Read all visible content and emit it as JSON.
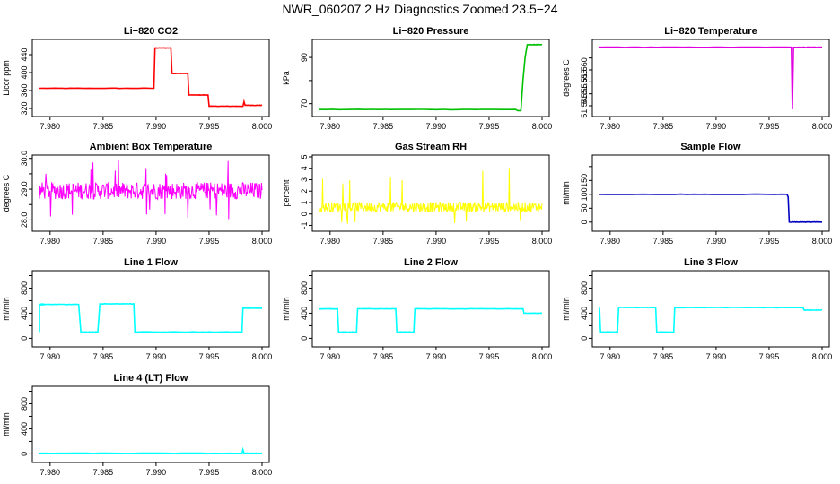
{
  "title": "NWR_060207  2 Hz Diagnostics Zoomed 23.5−24",
  "x_tick_labels": [
    "7.980",
    "7.985",
    "7.990",
    "7.995",
    "8.000"
  ],
  "chart_data": [
    {
      "type": "line",
      "title": "Li−820 CO2",
      "ylabel": "Licor ppm",
      "color": "#ff0000",
      "xlim": [
        7.979,
        8.0
      ],
      "ylim": [
        310,
        470
      ],
      "yticks": [
        320,
        360,
        400,
        440
      ],
      "x": [
        7.979,
        7.9898,
        7.9899,
        7.9914,
        7.9915,
        7.993,
        7.9931,
        7.9949,
        7.995,
        7.9982,
        7.9983,
        7.9984,
        8.0
      ],
      "y": [
        365,
        365,
        455,
        455,
        398,
        398,
        350,
        350,
        325,
        325,
        335,
        327,
        327
      ]
    },
    {
      "type": "line",
      "title": "Li−820 Pressure",
      "ylabel": "kPa",
      "color": "#00c000",
      "xlim": [
        7.979,
        8.0
      ],
      "ylim": [
        66,
        97
      ],
      "yticks": [
        70,
        80,
        90
      ],
      "ytick_labels": [
        "70",
        "",
        "90"
      ],
      "x": [
        7.979,
        7.9975,
        7.9977,
        7.998,
        7.9982,
        7.9984,
        7.9986,
        8.0
      ],
      "y": [
        67.5,
        67.5,
        67.0,
        67.0,
        80,
        90,
        95.5,
        95.5
      ]
    },
    {
      "type": "line",
      "title": "Li−820 Temperature",
      "ylabel": "degrees C",
      "color": "#e000e0",
      "xlim": [
        7.979,
        8.0
      ],
      "ylim": [
        51.542,
        51.572
      ],
      "yticks": [
        51.545,
        51.55,
        51.555,
        51.56,
        51.565
      ],
      "ytick_labels": [
        "51.545",
        "51.55",
        "51.555",
        "51.560",
        ""
      ],
      "x": [
        7.979,
        7.9971,
        7.9972,
        7.9973,
        8.0
      ],
      "y": [
        51.5695,
        51.5695,
        51.5435,
        51.5695,
        51.5695
      ]
    },
    {
      "type": "line",
      "title": "Ambient Box Temperature",
      "ylabel": "degrees C",
      "color": "#ff00ff",
      "xlim": [
        7.979,
        8.0
      ],
      "ylim": [
        27.75,
        30.05
      ],
      "yticks": [
        28.0,
        28.5,
        29.0,
        29.5,
        30.0
      ],
      "ytick_labels": [
        "28.0",
        "",
        "29.0",
        "",
        "30.0"
      ],
      "noise": {
        "center": 28.95,
        "spread": 0.28,
        "spike_up": 29.95,
        "spike_down": 27.95
      }
    },
    {
      "type": "line",
      "title": "Gas Stream RH",
      "ylabel": "percent",
      "color": "#ffff00",
      "xlim": [
        7.979,
        8.0
      ],
      "ylim": [
        -1.2,
        5.0
      ],
      "yticks": [
        -1,
        0,
        1,
        2,
        3,
        4,
        5
      ],
      "noise": {
        "center": 0.6,
        "spread": 0.45,
        "spike_up": 4.6,
        "spike_down": -0.9
      }
    },
    {
      "type": "line",
      "title": "Sample Flow",
      "ylabel": "ml/min",
      "color": "#0000c0",
      "xlim": [
        7.979,
        8.0
      ],
      "ylim": [
        -20,
        235
      ],
      "yticks": [
        0,
        50,
        100,
        150,
        200
      ],
      "ytick_labels": [
        "0",
        "50",
        "100",
        "150",
        ""
      ],
      "x": [
        7.979,
        7.9967,
        7.9968,
        7.9969,
        8.0
      ],
      "y": [
        100,
        100,
        90,
        0,
        0
      ]
    },
    {
      "type": "line",
      "title": "Line 1 Flow",
      "ylabel": "ml/min",
      "color": "#00ffff",
      "xlim": [
        7.979,
        8.0
      ],
      "ylim": [
        -80,
        1050
      ],
      "yticks": [
        0,
        200,
        400,
        600,
        800,
        1000
      ],
      "ytick_labels": [
        "0",
        "",
        "400",
        "",
        "800",
        ""
      ],
      "x": [
        7.979,
        7.979,
        7.9795,
        7.9827,
        7.9829,
        7.9845,
        7.9847,
        7.9879,
        7.988,
        7.9981,
        7.9982,
        8.0
      ],
      "y": [
        100,
        540,
        540,
        540,
        100,
        100,
        550,
        550,
        100,
        100,
        480,
        480
      ]
    },
    {
      "type": "line",
      "title": "Line 2 Flow",
      "ylabel": "ml/min",
      "color": "#00ffff",
      "xlim": [
        7.979,
        8.0
      ],
      "ylim": [
        -80,
        1050
      ],
      "yticks": [
        0,
        200,
        400,
        600,
        800,
        1000
      ],
      "ytick_labels": [
        "0",
        "",
        "400",
        "",
        "800",
        ""
      ],
      "x": [
        7.979,
        7.9807,
        7.9808,
        7.9825,
        7.9826,
        7.9862,
        7.9863,
        7.9879,
        7.988,
        7.9982,
        7.9983,
        8.0
      ],
      "y": [
        470,
        470,
        100,
        100,
        470,
        470,
        100,
        100,
        470,
        470,
        400,
        400
      ]
    },
    {
      "type": "line",
      "title": "Line 3 Flow",
      "ylabel": "ml/min",
      "color": "#00ffff",
      "xlim": [
        7.979,
        8.0
      ],
      "ylim": [
        -80,
        1050
      ],
      "yticks": [
        0,
        200,
        400,
        600,
        800,
        1000
      ],
      "ytick_labels": [
        "0",
        "",
        "400",
        "",
        "800",
        ""
      ],
      "x": [
        7.979,
        7.9791,
        7.9807,
        7.9808,
        7.9843,
        7.9844,
        7.986,
        7.9861,
        7.9982,
        7.9983,
        8.0
      ],
      "y": [
        490,
        100,
        100,
        490,
        490,
        100,
        100,
        490,
        490,
        450,
        450
      ]
    },
    {
      "type": "line",
      "title": "Line 4 (LT) Flow",
      "ylabel": "ml/min",
      "color": "#00ffff",
      "xlim": [
        7.979,
        8.0
      ],
      "ylim": [
        -80,
        1050
      ],
      "yticks": [
        0,
        200,
        400,
        600,
        800,
        1000
      ],
      "ytick_labels": [
        "0",
        "",
        "400",
        "",
        "800",
        ""
      ],
      "x": [
        7.979,
        7.9981,
        7.9982,
        7.9983,
        8.0
      ],
      "y": [
        10,
        10,
        70,
        10,
        10
      ]
    }
  ]
}
